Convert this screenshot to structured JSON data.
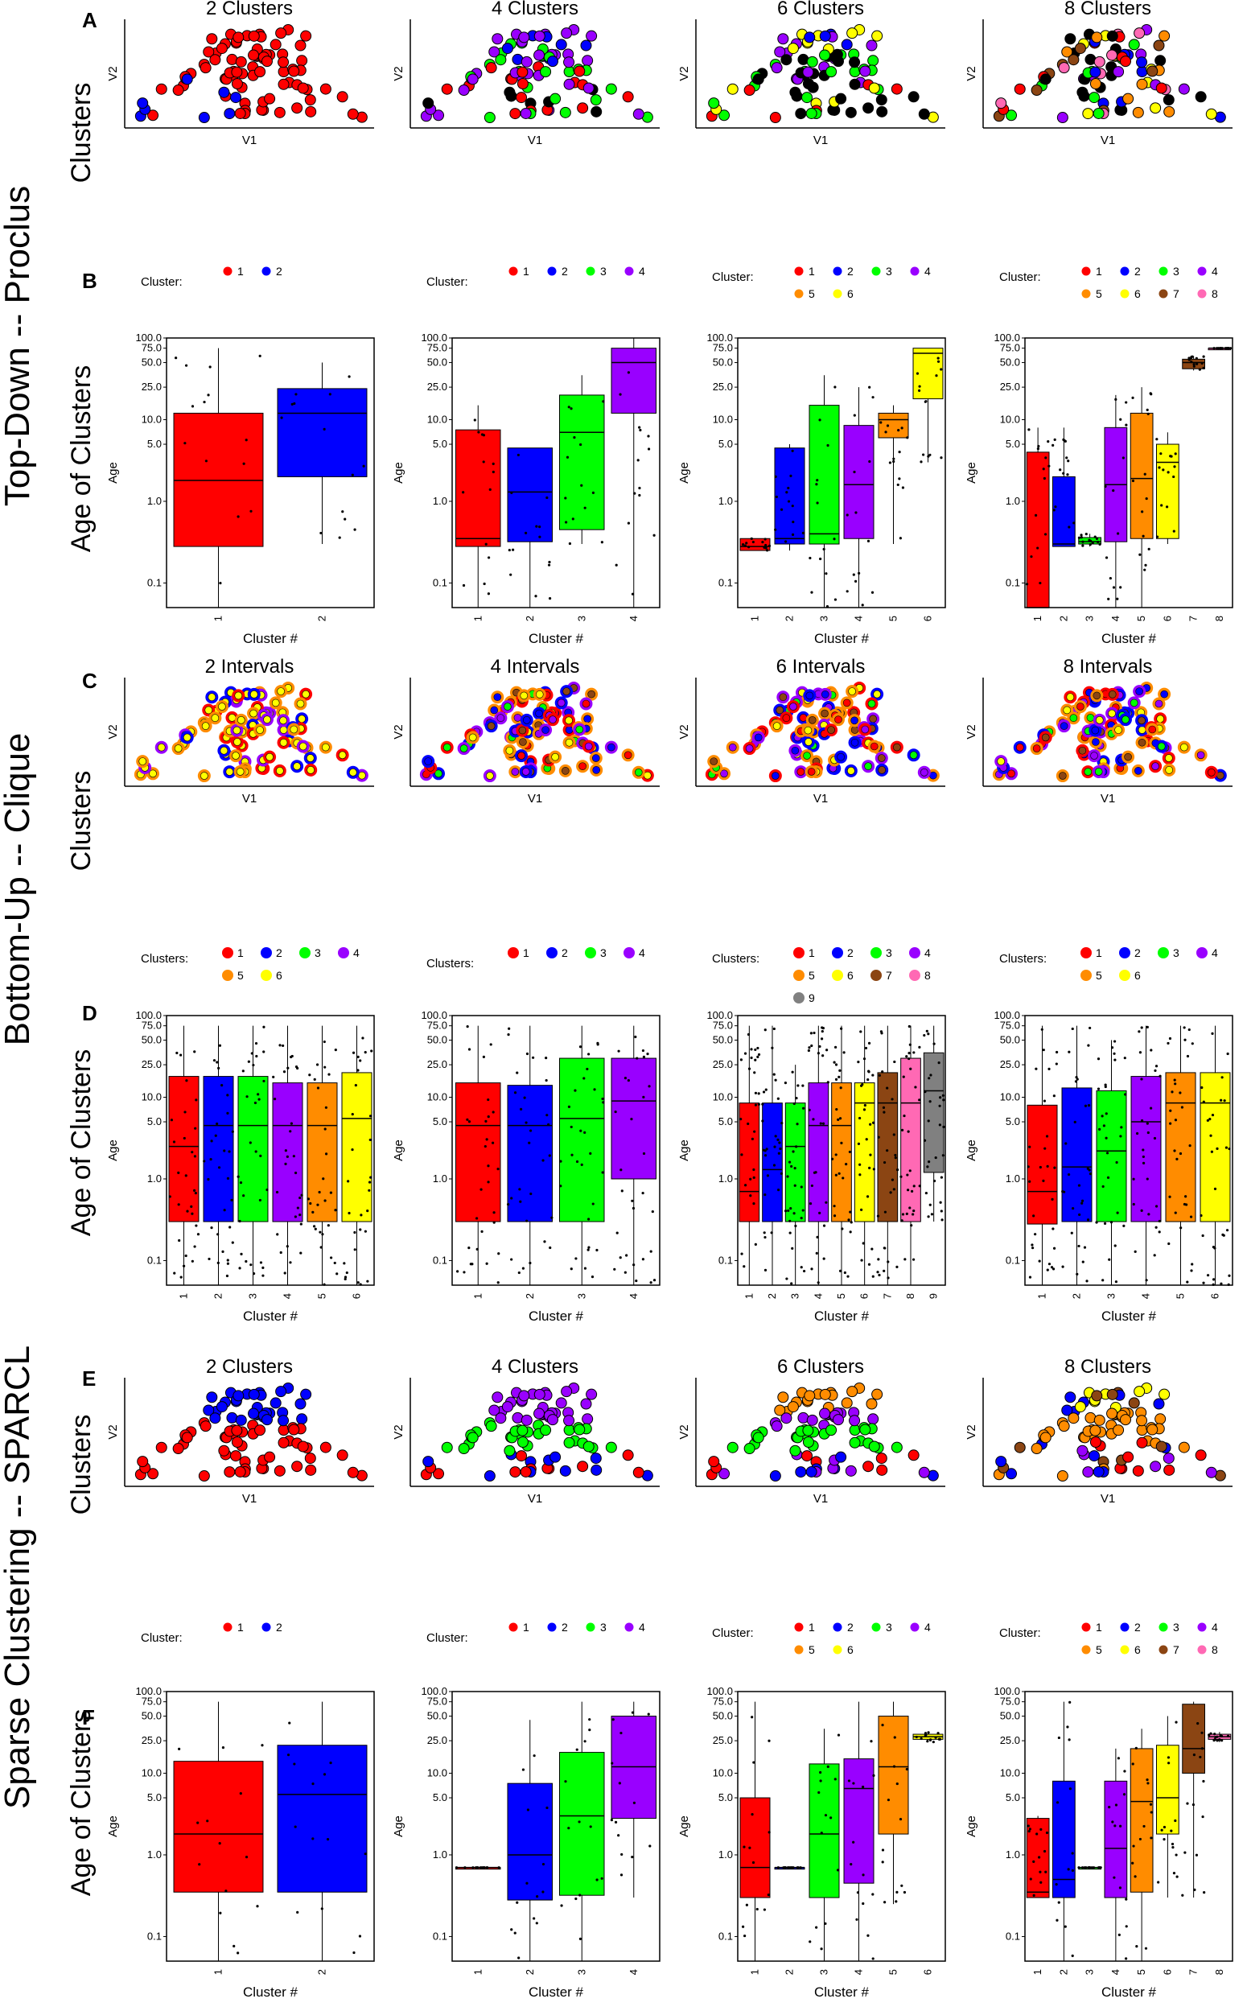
{
  "section_labels": {
    "top_down": "Top-Down -- Proclus",
    "bottom_up": "Bottom-Up -- Clique",
    "sparse": "Sparse Clustering -- SPARCL"
  },
  "panel_letters": {
    "A": "A",
    "B": "B",
    "C": "C",
    "D": "D",
    "E": "E",
    "F": "F"
  },
  "common": {
    "clusters_label": "Clusters",
    "age_label": "Age of Clusters",
    "v1": "V1",
    "v2": "V2",
    "age_axis": "Age",
    "cluster_num": "Cluster #",
    "legend_cluster": "Cluster:",
    "legend_clusters": "Clusters:",
    "y_ticks": [
      "100.0",
      "75.0",
      "50.0",
      "25.0",
      "10.0",
      "5.0",
      "1.0",
      "0.1"
    ]
  },
  "colors": {
    "1": "#ff0000",
    "2": "#0000ff",
    "3": "#00ff00",
    "4": "#9900ff",
    "5": "#ff8c00",
    "6": "#ffff00",
    "7": "#8b4513",
    "8": "#ff69b4",
    "9": "#808080",
    "black": "#000000"
  },
  "scatter_titles": {
    "A": [
      "2 Clusters",
      "4 Clusters",
      "6 Clusters",
      "8 Clusters"
    ],
    "C": [
      "2 Intervals",
      "4 Intervals",
      "6 Intervals",
      "8 Intervals"
    ],
    "E": [
      "2 Clusters",
      "4 Clusters",
      "6 Clusters",
      "8 Clusters"
    ]
  },
  "chart_data": [
    {
      "panel": "B",
      "type": "box",
      "ylog": true,
      "ylim": [
        0.05,
        100
      ],
      "subplots": [
        {
          "n": 2,
          "legend": [
            "1",
            "2"
          ],
          "boxes": [
            {
              "cluster": "1",
              "q1": 0.28,
              "median": 1.8,
              "q3": 12,
              "lo": 0.05,
              "hi": 75
            },
            {
              "cluster": "2",
              "q1": 2,
              "median": 12,
              "q3": 24,
              "lo": 0.3,
              "hi": 50
            }
          ]
        },
        {
          "n": 4,
          "legend": [
            "1",
            "2",
            "3",
            "4"
          ],
          "boxes": [
            {
              "cluster": "1",
              "q1": 0.28,
              "median": 0.35,
              "q3": 7.5,
              "lo": 0.05,
              "hi": 15
            },
            {
              "cluster": "2",
              "q1": 0.32,
              "median": 1.3,
              "q3": 4.5,
              "lo": 0.05,
              "hi": 4.5
            },
            {
              "cluster": "3",
              "q1": 0.45,
              "median": 7,
              "q3": 20,
              "lo": 0.3,
              "hi": 35
            },
            {
              "cluster": "4",
              "q1": 12,
              "median": 50,
              "q3": 75,
              "lo": 0.05,
              "hi": 100
            }
          ]
        },
        {
          "n": 6,
          "legend": [
            "1",
            "2",
            "3",
            "4",
            "5",
            "6"
          ],
          "boxes": [
            {
              "cluster": "1",
              "q1": 0.25,
              "median": 0.28,
              "q3": 0.35,
              "lo": 0.25,
              "hi": 0.35
            },
            {
              "cluster": "2",
              "q1": 0.3,
              "median": 0.35,
              "q3": 4.5,
              "lo": 0.25,
              "hi": 5
            },
            {
              "cluster": "3",
              "q1": 0.3,
              "median": 0.4,
              "q3": 15,
              "lo": 0.05,
              "hi": 35
            },
            {
              "cluster": "4",
              "q1": 0.35,
              "median": 1.6,
              "q3": 8.5,
              "lo": 0.05,
              "hi": 25
            },
            {
              "cluster": "5",
              "q1": 6,
              "median": 10,
              "q3": 12,
              "lo": 0.3,
              "hi": 15
            },
            {
              "cluster": "6",
              "q1": 18,
              "median": 65,
              "q3": 75,
              "lo": 3,
              "hi": 75
            }
          ]
        },
        {
          "n": 8,
          "legend": [
            "1",
            "2",
            "3",
            "4",
            "5",
            "6",
            "7",
            "8"
          ],
          "boxes": [
            {
              "cluster": "1",
              "q1": 0.05,
              "median": 0.05,
              "q3": 4,
              "lo": 0.05,
              "hi": 8
            },
            {
              "cluster": "2",
              "q1": 0.28,
              "median": 0.3,
              "q3": 2,
              "lo": 0.28,
              "hi": 8
            },
            {
              "cluster": "3",
              "q1": 0.3,
              "median": 0.32,
              "q3": 0.36,
              "lo": 0.28,
              "hi": 0.4
            },
            {
              "cluster": "4",
              "q1": 0.32,
              "median": 1.6,
              "q3": 8,
              "lo": 0.05,
              "hi": 20
            },
            {
              "cluster": "5",
              "q1": 0.35,
              "median": 1.9,
              "q3": 12,
              "lo": 0.05,
              "hi": 25
            },
            {
              "cluster": "6",
              "q1": 0.35,
              "median": 3,
              "q3": 5,
              "lo": 0.3,
              "hi": 7
            },
            {
              "cluster": "7",
              "q1": 42,
              "median": 50,
              "q3": 55,
              "lo": 40,
              "hi": 60
            },
            {
              "cluster": "8",
              "q1": 75,
              "median": 75,
              "q3": 75,
              "lo": 75,
              "hi": 75
            }
          ]
        }
      ]
    },
    {
      "panel": "D",
      "type": "box",
      "ylog": true,
      "ylim": [
        0.05,
        100
      ],
      "subplots": [
        {
          "n": 6,
          "legend": [
            "1",
            "2",
            "3",
            "4",
            "5",
            "6"
          ],
          "boxes": [
            {
              "cluster": "1",
              "q1": 0.3,
              "median": 2.5,
              "q3": 18,
              "lo": 0.05,
              "hi": 75
            },
            {
              "cluster": "2",
              "q1": 0.3,
              "median": 4.5,
              "q3": 18,
              "lo": 0.05,
              "hi": 75
            },
            {
              "cluster": "3",
              "q1": 0.3,
              "median": 4.5,
              "q3": 18,
              "lo": 0.05,
              "hi": 75
            },
            {
              "cluster": "4",
              "q1": 0.3,
              "median": 4.5,
              "q3": 15,
              "lo": 0.05,
              "hi": 75
            },
            {
              "cluster": "5",
              "q1": 0.3,
              "median": 4.5,
              "q3": 15,
              "lo": 0.05,
              "hi": 75
            },
            {
              "cluster": "6",
              "q1": 0.3,
              "median": 5.5,
              "q3": 20,
              "lo": 0.05,
              "hi": 75
            }
          ]
        },
        {
          "n": 4,
          "legend": [
            "1",
            "2",
            "3",
            "4"
          ],
          "boxes": [
            {
              "cluster": "1",
              "q1": 0.3,
              "median": 4.5,
              "q3": 15,
              "lo": 0.05,
              "hi": 75
            },
            {
              "cluster": "2",
              "q1": 0.3,
              "median": 4.5,
              "q3": 14,
              "lo": 0.05,
              "hi": 75
            },
            {
              "cluster": "3",
              "q1": 0.3,
              "median": 5.5,
              "q3": 30,
              "lo": 0.05,
              "hi": 75
            },
            {
              "cluster": "4",
              "q1": 1,
              "median": 9,
              "q3": 30,
              "lo": 0.05,
              "hi": 75
            }
          ]
        },
        {
          "n": 9,
          "legend": [
            "1",
            "2",
            "3",
            "4",
            "5",
            "6",
            "7",
            "8",
            "9"
          ],
          "boxes": [
            {
              "cluster": "1",
              "q1": 0.3,
              "median": 0.7,
              "q3": 8.5,
              "lo": 0.05,
              "hi": 75
            },
            {
              "cluster": "2",
              "q1": 0.3,
              "median": 1.3,
              "q3": 8.5,
              "lo": 0.05,
              "hi": 75
            },
            {
              "cluster": "3",
              "q1": 0.3,
              "median": 2.5,
              "q3": 8.5,
              "lo": 0.05,
              "hi": 25
            },
            {
              "cluster": "4",
              "q1": 0.3,
              "median": 4.5,
              "q3": 15,
              "lo": 0.05,
              "hi": 75
            },
            {
              "cluster": "5",
              "q1": 0.3,
              "median": 4.5,
              "q3": 15,
              "lo": 0.05,
              "hi": 75
            },
            {
              "cluster": "6",
              "q1": 0.3,
              "median": 8.5,
              "q3": 15,
              "lo": 0.05,
              "hi": 75
            },
            {
              "cluster": "7",
              "q1": 0.3,
              "median": 8.5,
              "q3": 20,
              "lo": 0.05,
              "hi": 75
            },
            {
              "cluster": "8",
              "q1": 0.3,
              "median": 8.5,
              "q3": 30,
              "lo": 0.05,
              "hi": 75
            },
            {
              "cluster": "9",
              "q1": 1.2,
              "median": 12,
              "q3": 35,
              "lo": 0.3,
              "hi": 75
            }
          ]
        },
        {
          "n": 6,
          "legend": [
            "1",
            "2",
            "3",
            "4",
            "5",
            "6"
          ],
          "boxes": [
            {
              "cluster": "1",
              "q1": 0.28,
              "median": 0.7,
              "q3": 8,
              "lo": 0.05,
              "hi": 75
            },
            {
              "cluster": "2",
              "q1": 0.3,
              "median": 1.4,
              "q3": 13,
              "lo": 0.05,
              "hi": 75
            },
            {
              "cluster": "3",
              "q1": 0.3,
              "median": 2.2,
              "q3": 12,
              "lo": 0.05,
              "hi": 50
            },
            {
              "cluster": "4",
              "q1": 0.3,
              "median": 5,
              "q3": 18,
              "lo": 0.05,
              "hi": 75
            },
            {
              "cluster": "5",
              "q1": 0.3,
              "median": 8.5,
              "q3": 20,
              "lo": 0.05,
              "hi": 75
            },
            {
              "cluster": "6",
              "q1": 0.3,
              "median": 8.5,
              "q3": 20,
              "lo": 0.05,
              "hi": 75
            }
          ]
        }
      ]
    },
    {
      "panel": "F",
      "type": "box",
      "ylog": true,
      "ylim": [
        0.05,
        100
      ],
      "subplots": [
        {
          "n": 2,
          "legend": [
            "1",
            "2"
          ],
          "boxes": [
            {
              "cluster": "1",
              "q1": 0.35,
              "median": 1.8,
              "q3": 14,
              "lo": 0.05,
              "hi": 75
            },
            {
              "cluster": "2",
              "q1": 0.35,
              "median": 5.5,
              "q3": 22,
              "lo": 0.05,
              "hi": 75
            }
          ]
        },
        {
          "n": 4,
          "legend": [
            "1",
            "2",
            "3",
            "4"
          ],
          "boxes": [
            {
              "cluster": "1",
              "q1": 0.7,
              "median": 0.7,
              "q3": 0.7,
              "lo": 0.7,
              "hi": 0.7
            },
            {
              "cluster": "2",
              "q1": 0.28,
              "median": 1,
              "q3": 7.5,
              "lo": 0.05,
              "hi": 45
            },
            {
              "cluster": "3",
              "q1": 0.32,
              "median": 3,
              "q3": 18,
              "lo": 0.05,
              "hi": 75
            },
            {
              "cluster": "4",
              "q1": 2.8,
              "median": 12,
              "q3": 50,
              "lo": 0.3,
              "hi": 75
            }
          ]
        },
        {
          "n": 6,
          "legend": [
            "1",
            "2",
            "3",
            "4",
            "5",
            "6"
          ],
          "boxes": [
            {
              "cluster": "1",
              "q1": 0.3,
              "median": 0.7,
              "q3": 5,
              "lo": 0.05,
              "hi": 75
            },
            {
              "cluster": "2",
              "q1": 0.7,
              "median": 0.7,
              "q3": 0.7,
              "lo": 0.7,
              "hi": 0.7
            },
            {
              "cluster": "3",
              "q1": 0.3,
              "median": 1.8,
              "q3": 13,
              "lo": 0.05,
              "hi": 35
            },
            {
              "cluster": "4",
              "q1": 0.45,
              "median": 6.5,
              "q3": 15,
              "lo": 0.05,
              "hi": 75
            },
            {
              "cluster": "5",
              "q1": 1.8,
              "median": 12,
              "q3": 50,
              "lo": 0.25,
              "hi": 75
            },
            {
              "cluster": "6",
              "q1": 26,
              "median": 28,
              "q3": 30,
              "lo": 24,
              "hi": 32
            }
          ]
        },
        {
          "n": 8,
          "legend": [
            "1",
            "2",
            "3",
            "4",
            "5",
            "6",
            "7",
            "8"
          ],
          "boxes": [
            {
              "cluster": "1",
              "q1": 0.3,
              "median": 0.35,
              "q3": 2.8,
              "lo": 0.3,
              "hi": 3
            },
            {
              "cluster": "2",
              "q1": 0.3,
              "median": 0.5,
              "q3": 8,
              "lo": 0.05,
              "hi": 75
            },
            {
              "cluster": "3",
              "q1": 0.7,
              "median": 0.7,
              "q3": 0.7,
              "lo": 0.7,
              "hi": 0.7
            },
            {
              "cluster": "4",
              "q1": 0.3,
              "median": 1.2,
              "q3": 8,
              "lo": 0.05,
              "hi": 20
            },
            {
              "cluster": "5",
              "q1": 0.35,
              "median": 4.5,
              "q3": 20,
              "lo": 0.05,
              "hi": 35
            },
            {
              "cluster": "6",
              "q1": 1.8,
              "median": 5,
              "q3": 22,
              "lo": 0.3,
              "hi": 50
            },
            {
              "cluster": "7",
              "q1": 10,
              "median": 20,
              "q3": 70,
              "lo": 0.3,
              "hi": 75
            },
            {
              "cluster": "8",
              "q1": 26,
              "median": 28,
              "q3": 30,
              "lo": 24,
              "hi": 32
            }
          ]
        }
      ]
    }
  ]
}
